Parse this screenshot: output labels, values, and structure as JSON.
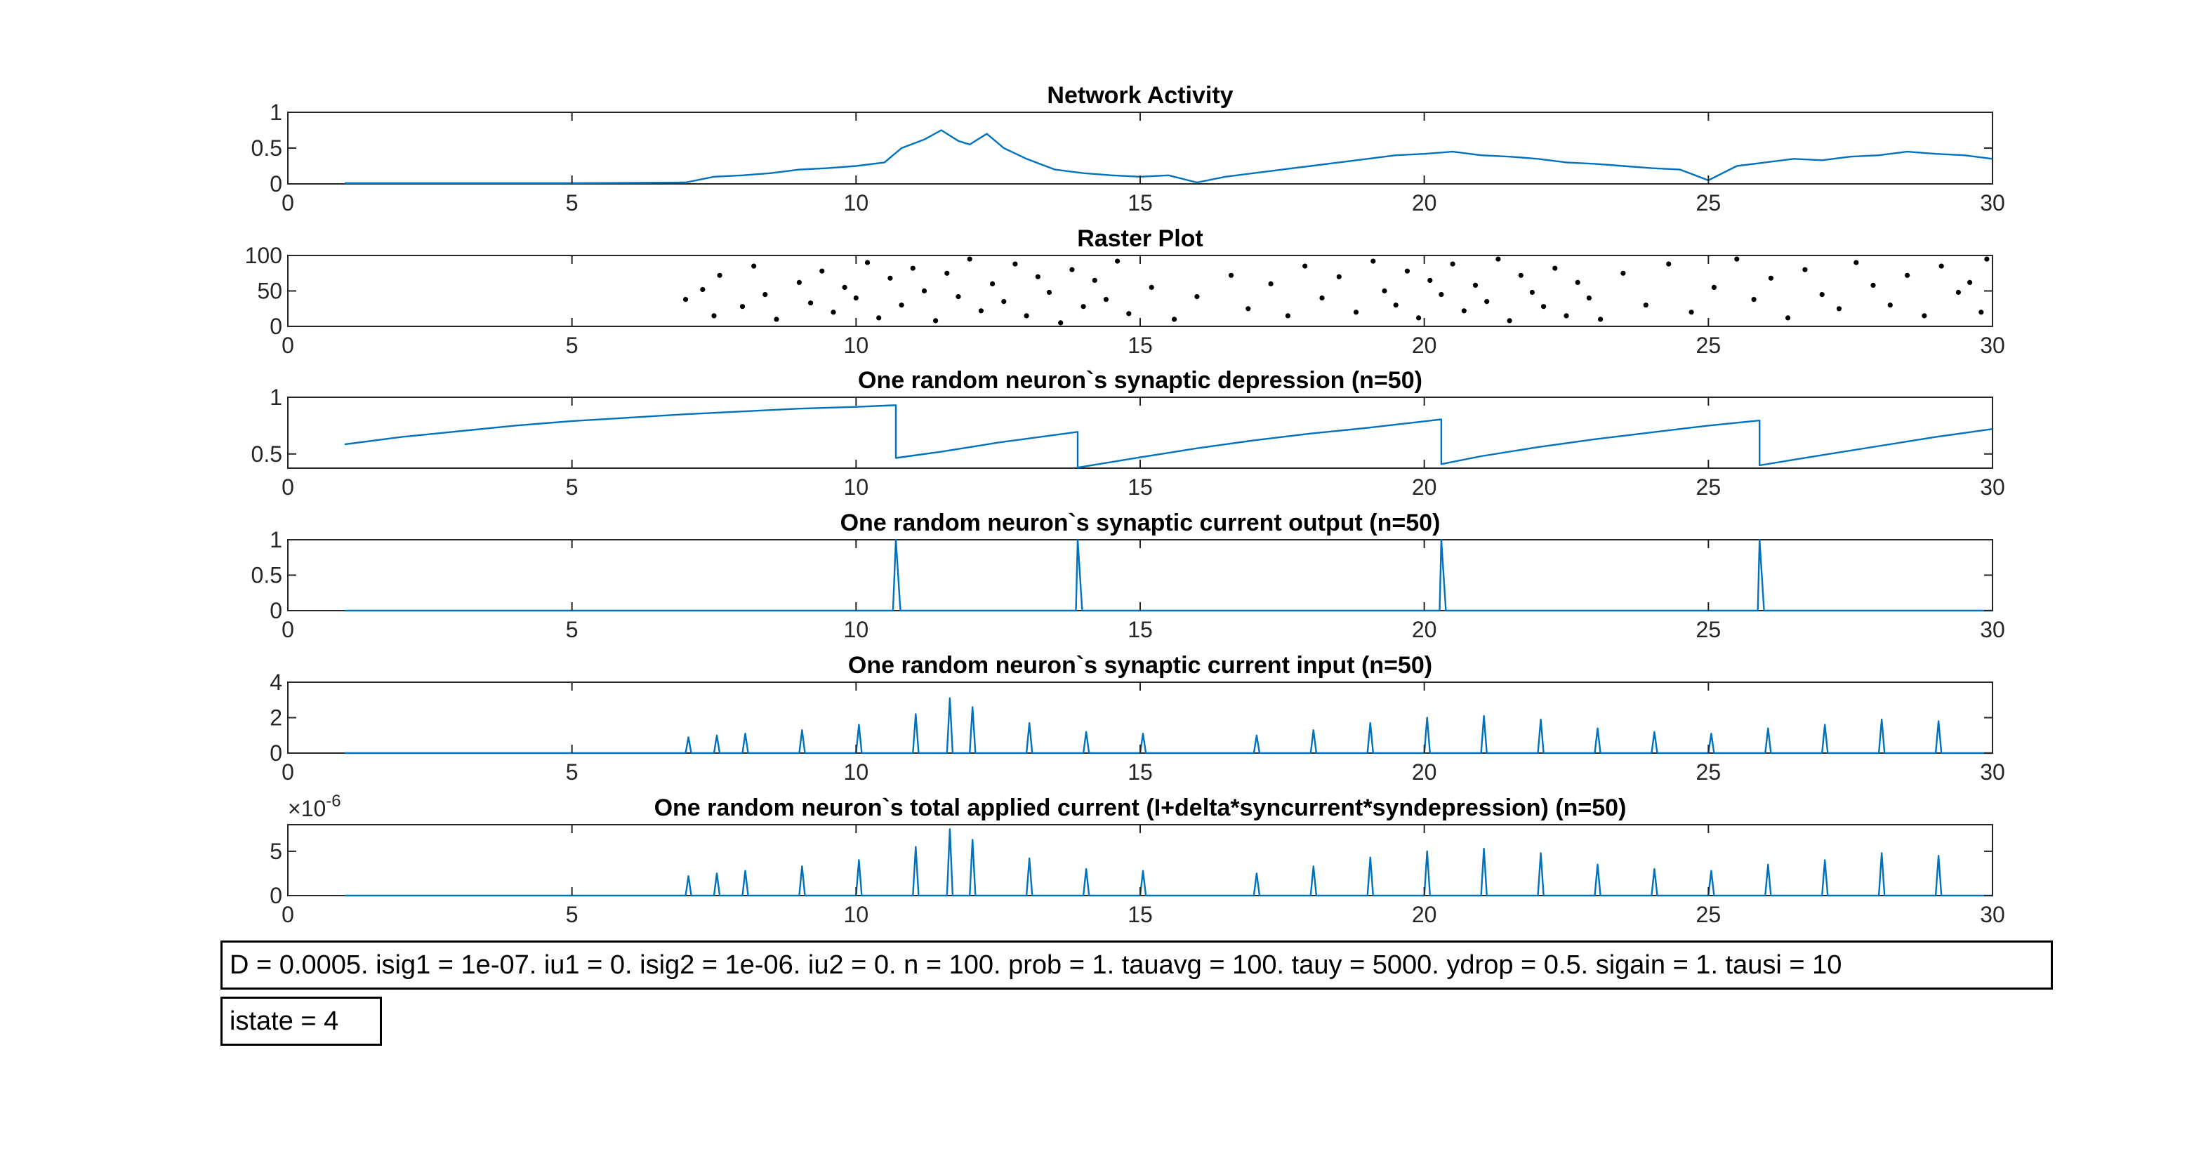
{
  "colors": {
    "line": "#0072BD",
    "marker": "#000000",
    "axis": "#262626",
    "grid": "#000000"
  },
  "chart_data": [
    {
      "type": "line",
      "title": "Network Activity",
      "xlim": [
        0,
        30
      ],
      "ylim": [
        0,
        1
      ],
      "xticks": [
        0,
        5,
        10,
        15,
        20,
        25,
        30
      ],
      "yticks": [
        0,
        0.5,
        1
      ],
      "xtick_labels": [
        "0",
        "5",
        "10",
        "15",
        "20",
        "25",
        "30"
      ],
      "ytick_labels": [
        "0",
        "0.5",
        "1"
      ],
      "exponent_label": "",
      "series": [
        {
          "x": [
            1,
            3,
            5,
            7,
            7.5,
            8,
            8.5,
            9,
            9.5,
            10,
            10.5,
            10.8,
            11.2,
            11.5,
            11.8,
            12,
            12.3,
            12.6,
            13,
            13.5,
            14,
            14.5,
            15,
            15.5,
            16,
            16.5,
            17,
            17.5,
            18,
            18.5,
            19,
            19.5,
            20,
            20.5,
            21,
            21.5,
            22,
            22.5,
            23,
            23.5,
            24,
            24.5,
            25,
            25.5,
            26,
            26.5,
            27,
            27.5,
            28,
            28.5,
            29,
            29.5,
            30
          ],
          "y": [
            0.01,
            0.01,
            0.01,
            0.02,
            0.1,
            0.12,
            0.15,
            0.2,
            0.22,
            0.25,
            0.3,
            0.5,
            0.62,
            0.75,
            0.6,
            0.55,
            0.7,
            0.5,
            0.35,
            0.2,
            0.15,
            0.12,
            0.1,
            0.12,
            0.02,
            0.1,
            0.15,
            0.2,
            0.25,
            0.3,
            0.35,
            0.4,
            0.42,
            0.45,
            0.4,
            0.38,
            0.35,
            0.3,
            0.28,
            0.25,
            0.22,
            0.2,
            0.05,
            0.25,
            0.3,
            0.35,
            0.33,
            0.38,
            0.4,
            0.45,
            0.42,
            0.4,
            0.35
          ]
        }
      ]
    },
    {
      "type": "scatter",
      "title": "Raster Plot",
      "xlim": [
        0,
        30
      ],
      "ylim": [
        0,
        100
      ],
      "xticks": [
        0,
        5,
        10,
        15,
        20,
        25,
        30
      ],
      "yticks": [
        0,
        50,
        100
      ],
      "xtick_labels": [
        "0",
        "5",
        "10",
        "15",
        "20",
        "25",
        "30"
      ],
      "ytick_labels": [
        "0",
        "50",
        "100"
      ],
      "exponent_label": "",
      "series": [
        {
          "x": [
            7.0,
            7.3,
            7.5,
            7.6,
            8.0,
            8.2,
            8.4,
            8.6,
            9.0,
            9.2,
            9.4,
            9.6,
            9.8,
            10.0,
            10.2,
            10.4,
            10.6,
            10.8,
            11.0,
            11.2,
            11.4,
            11.6,
            11.8,
            12.0,
            12.2,
            12.4,
            12.6,
            12.8,
            13.0,
            13.2,
            13.4,
            13.6,
            13.8,
            14.0,
            14.2,
            14.4,
            14.6,
            14.8,
            15.2,
            15.6,
            16.0,
            16.6,
            16.9,
            17.3,
            17.6,
            17.9,
            18.2,
            18.5,
            18.8,
            19.1,
            19.3,
            19.5,
            19.7,
            19.9,
            20.1,
            20.3,
            20.5,
            20.7,
            20.9,
            21.1,
            21.3,
            21.5,
            21.7,
            21.9,
            22.1,
            22.3,
            22.5,
            22.7,
            22.9,
            23.1,
            23.5,
            23.9,
            24.3,
            24.7,
            25.1,
            25.5,
            25.8,
            26.1,
            26.4,
            26.7,
            27.0,
            27.3,
            27.6,
            27.9,
            28.2,
            28.5,
            28.8,
            29.1,
            29.4,
            29.6,
            29.8,
            29.9
          ],
          "y": [
            38,
            52,
            15,
            72,
            28,
            85,
            45,
            10,
            62,
            33,
            78,
            20,
            55,
            40,
            90,
            12,
            68,
            30,
            82,
            50,
            8,
            75,
            42,
            95,
            22,
            60,
            35,
            88,
            15,
            70,
            48,
            5,
            80,
            28,
            65,
            38,
            92,
            18,
            55,
            10,
            42,
            72,
            25,
            60,
            15,
            85,
            40,
            70,
            20,
            92,
            50,
            30,
            78,
            12,
            65,
            45,
            88,
            22,
            58,
            35,
            95,
            8,
            72,
            48,
            28,
            82,
            15,
            62,
            40,
            10,
            75,
            30,
            88,
            20,
            55,
            95,
            38,
            68,
            12,
            80,
            45,
            25,
            90,
            58,
            30,
            72,
            15,
            85,
            48,
            62,
            20,
            95
          ]
        }
      ]
    },
    {
      "type": "line",
      "title": "One random neuron`s synaptic depression (n=50)",
      "xlim": [
        0,
        30
      ],
      "ylim": [
        0.375,
        1
      ],
      "xticks": [
        0,
        5,
        10,
        15,
        20,
        25,
        30
      ],
      "yticks": [
        0.5,
        1
      ],
      "xtick_labels": [
        "0",
        "5",
        "10",
        "15",
        "20",
        "25",
        "30"
      ],
      "ytick_labels": [
        "0.5",
        "1"
      ],
      "exponent_label": "",
      "series": [
        {
          "x": [
            1,
            2,
            3,
            4,
            5,
            6,
            7,
            8,
            9,
            10,
            10.7,
            10.7,
            11.5,
            12.5,
            13.9,
            13.9,
            15,
            16,
            17,
            18,
            19,
            20.3,
            20.3,
            21,
            22,
            23,
            24,
            25,
            25.9,
            25.9,
            27,
            28,
            29,
            30
          ],
          "y": [
            0.585,
            0.65,
            0.7,
            0.75,
            0.79,
            0.82,
            0.85,
            0.875,
            0.9,
            0.915,
            0.93,
            0.465,
            0.52,
            0.6,
            0.695,
            0.38,
            0.47,
            0.55,
            0.62,
            0.68,
            0.73,
            0.805,
            0.41,
            0.48,
            0.56,
            0.63,
            0.69,
            0.75,
            0.795,
            0.4,
            0.49,
            0.57,
            0.65,
            0.72
          ]
        }
      ]
    },
    {
      "type": "line",
      "title": "One random neuron`s synaptic current output (n=50)",
      "xlim": [
        0,
        30
      ],
      "ylim": [
        0,
        1
      ],
      "xticks": [
        0,
        5,
        10,
        15,
        20,
        25,
        30
      ],
      "yticks": [
        0,
        0.5,
        1
      ],
      "xtick_labels": [
        "0",
        "5",
        "10",
        "15",
        "20",
        "25",
        "30"
      ],
      "ytick_labels": [
        "0",
        "0.5",
        "1"
      ],
      "exponent_label": "",
      "series": [
        {
          "x": [
            1,
            10.65,
            10.7,
            10.78,
            13.87,
            13.9,
            13.98,
            20.27,
            20.3,
            20.38,
            25.87,
            25.9,
            25.98,
            30
          ],
          "y": [
            0,
            0,
            1,
            0,
            0,
            1,
            0,
            0,
            1,
            0,
            0,
            1,
            0,
            0
          ]
        }
      ]
    },
    {
      "type": "line",
      "title": "One random neuron`s synaptic current input (n=50)",
      "xlim": [
        0,
        30
      ],
      "ylim": [
        0,
        4
      ],
      "xticks": [
        0,
        5,
        10,
        15,
        20,
        25,
        30
      ],
      "yticks": [
        0,
        2,
        4
      ],
      "xtick_labels": [
        "0",
        "5",
        "10",
        "15",
        "20",
        "25",
        "30"
      ],
      "ytick_labels": [
        "0",
        "2",
        "4"
      ],
      "exponent_label": "",
      "series": [
        {
          "x": [
            1,
            7,
            7.05,
            7.1,
            7.5,
            7.55,
            7.6,
            8,
            8.05,
            8.1,
            9,
            9.05,
            9.1,
            10,
            10.05,
            10.1,
            11,
            11.05,
            11.1,
            11.6,
            11.65,
            11.7,
            12,
            12.05,
            12.1,
            13,
            13.05,
            13.1,
            14,
            14.05,
            14.1,
            15,
            15.05,
            15.1,
            17,
            17.05,
            17.1,
            18,
            18.05,
            18.1,
            19,
            19.05,
            19.1,
            20,
            20.05,
            20.1,
            21,
            21.05,
            21.1,
            22,
            22.05,
            22.1,
            23,
            23.05,
            23.1,
            24,
            24.05,
            24.1,
            25,
            25.05,
            25.1,
            26,
            26.05,
            26.1,
            27,
            27.05,
            27.1,
            28,
            28.05,
            28.1,
            29,
            29.05,
            29.1,
            30
          ],
          "y": [
            0,
            0,
            0.9,
            0,
            0,
            1.0,
            0,
            0,
            1.1,
            0,
            0,
            1.3,
            0,
            0,
            1.6,
            0,
            0,
            2.2,
            0,
            0,
            3.1,
            0,
            0,
            2.6,
            0,
            0,
            1.7,
            0,
            0,
            1.2,
            0,
            0,
            1.1,
            0,
            0,
            1.0,
            0,
            0,
            1.3,
            0,
            0,
            1.7,
            0,
            0,
            2.0,
            0,
            0,
            2.1,
            0,
            0,
            1.9,
            0,
            0,
            1.4,
            0,
            0,
            1.2,
            0,
            0,
            1.1,
            0,
            0,
            1.4,
            0,
            0,
            1.6,
            0,
            0,
            1.9,
            0,
            0,
            1.8,
            0,
            0
          ]
        }
      ]
    },
    {
      "type": "line",
      "title": "One random neuron`s total applied current (I+delta*syncurrent*syndepression) (n=50)",
      "xlim": [
        0,
        30
      ],
      "ylim": [
        0,
        8
      ],
      "xticks": [
        0,
        5,
        10,
        15,
        20,
        25,
        30
      ],
      "yticks": [
        0,
        5
      ],
      "xtick_labels": [
        "0",
        "5",
        "10",
        "15",
        "20",
        "25",
        "30"
      ],
      "ytick_labels": [
        "0",
        "5"
      ],
      "exponent_label": "×10",
      "exponent_power": "-6",
      "series": [
        {
          "x": [
            1,
            7,
            7.05,
            7.1,
            7.5,
            7.55,
            7.6,
            8,
            8.05,
            8.1,
            9,
            9.05,
            9.1,
            10,
            10.05,
            10.1,
            11,
            11.05,
            11.1,
            11.6,
            11.65,
            11.7,
            12,
            12.05,
            12.1,
            13,
            13.05,
            13.1,
            14,
            14.05,
            14.1,
            15,
            15.05,
            15.1,
            17,
            17.05,
            17.1,
            18,
            18.05,
            18.1,
            19,
            19.05,
            19.1,
            20,
            20.05,
            20.1,
            21,
            21.05,
            21.1,
            22,
            22.05,
            22.1,
            23,
            23.05,
            23.1,
            24,
            24.05,
            24.1,
            25,
            25.05,
            25.1,
            26,
            26.05,
            26.1,
            27,
            27.05,
            27.1,
            28,
            28.05,
            28.1,
            29,
            29.05,
            29.1,
            30
          ],
          "y": [
            0,
            0,
            2.2,
            0,
            0,
            2.5,
            0,
            0,
            2.8,
            0,
            0,
            3.3,
            0,
            0,
            4.0,
            0,
            0,
            5.5,
            0,
            0,
            7.5,
            0,
            0,
            6.3,
            0,
            0,
            4.2,
            0,
            0,
            3.0,
            0,
            0,
            2.8,
            0,
            0,
            2.5,
            0,
            0,
            3.3,
            0,
            0,
            4.3,
            0,
            0,
            5.0,
            0,
            0,
            5.3,
            0,
            0,
            4.8,
            0,
            0,
            3.5,
            0,
            0,
            3.0,
            0,
            0,
            2.8,
            0,
            0,
            3.5,
            0,
            0,
            4.0,
            0,
            0,
            4.8,
            0,
            0,
            4.5,
            0,
            0
          ]
        }
      ]
    }
  ],
  "annotations": {
    "params": "D = 0.0005. isig1 = 1e-07. iu1 = 0. isig2 = 1e-06. iu2 = 0. n = 100. prob = 1. tauavg = 100. tauy = 5000. ydrop = 0.5. sigain = 1. tausi = 10",
    "state": "istate = 4"
  }
}
